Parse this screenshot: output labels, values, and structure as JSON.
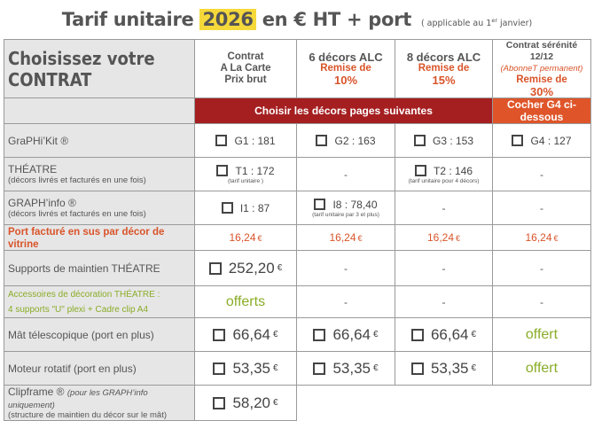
{
  "header": {
    "title_before": "Tarif unitaire",
    "year": "2026",
    "title_after": "en € HT + port",
    "note_prefix": "( applicable au 1",
    "note_sup": "er",
    "note_suffix": " janvier)"
  },
  "table_title": "Choisissez votre CONTRAT",
  "columns": {
    "c1": {
      "line1": "Contrat",
      "line2": "A La Carte",
      "line3": "Prix brut"
    },
    "c2": {
      "line1": "6 décors ALC",
      "disc": "Remise de",
      "pct": "10%"
    },
    "c3": {
      "line1": "8 décors ALC",
      "disc": "Remise de",
      "pct": "15%"
    },
    "c4": {
      "line1": "Contrat sérénité 12/12",
      "sub": "(AbonneT permanent)",
      "disc": "Remise de",
      "pct": "30%"
    }
  },
  "banner": {
    "left": "Choisir les décors pages suivantes",
    "right": "Cocher G4 ci-dessous"
  },
  "rows": {
    "graphikit": {
      "label": "GraPHi’Kit ®",
      "c1": "G1 : 181",
      "c2": "G2 : 163",
      "c3": "G3 : 153",
      "c4": "G4 : 127"
    },
    "theatre": {
      "label": "THÉATRE",
      "sub": "(décors livrés et facturés en une fois)",
      "c1": "T1 : 172",
      "c1_note": "(tarif unitaire )",
      "c2": "-",
      "c3": "T2 : 146",
      "c3_note": "(tarif unitaire pour 4 décors)",
      "c4": "-"
    },
    "graphinfo": {
      "label": "GRAPH’info ®",
      "sub": "(décors livrés et facturés en une fois)",
      "c1": "I1 : 87",
      "c2": "I8 : 78,40",
      "c2_note": "(tarif unitaire par 3 et plus)",
      "c3": "-",
      "c4": "-"
    },
    "port": {
      "label": "Port facturé en sus par décor de vitrine",
      "value": "16,24",
      "eur": "€"
    },
    "supports": {
      "label": "Supports de maintien THÉATRE",
      "c1": "252,20",
      "eur": "€",
      "c2": "-",
      "c3": "-",
      "c4": "-"
    },
    "accessoires": {
      "line1": "Accessoires de décoration THÉATRE :",
      "line2": "4 supports \"U\" plexi + Cadre clip A4",
      "c1": "offerts",
      "c2": "-",
      "c3": "-",
      "c4": "-"
    },
    "mat": {
      "label": "Mât télescopique (port en plus)",
      "value": "66,64",
      "eur": "€",
      "c4": "offert"
    },
    "moteur": {
      "label": "Moteur rotatif (port en plus)",
      "value": "53,35",
      "eur": "€",
      "c4": "offert"
    },
    "clipframe": {
      "label": "Clipframe ®",
      "italic": "(pour les GRAPH’info uniquement)",
      "sub": "(structure de maintien du décor sur le mât)",
      "c1": "58,20",
      "eur": "€"
    }
  }
}
